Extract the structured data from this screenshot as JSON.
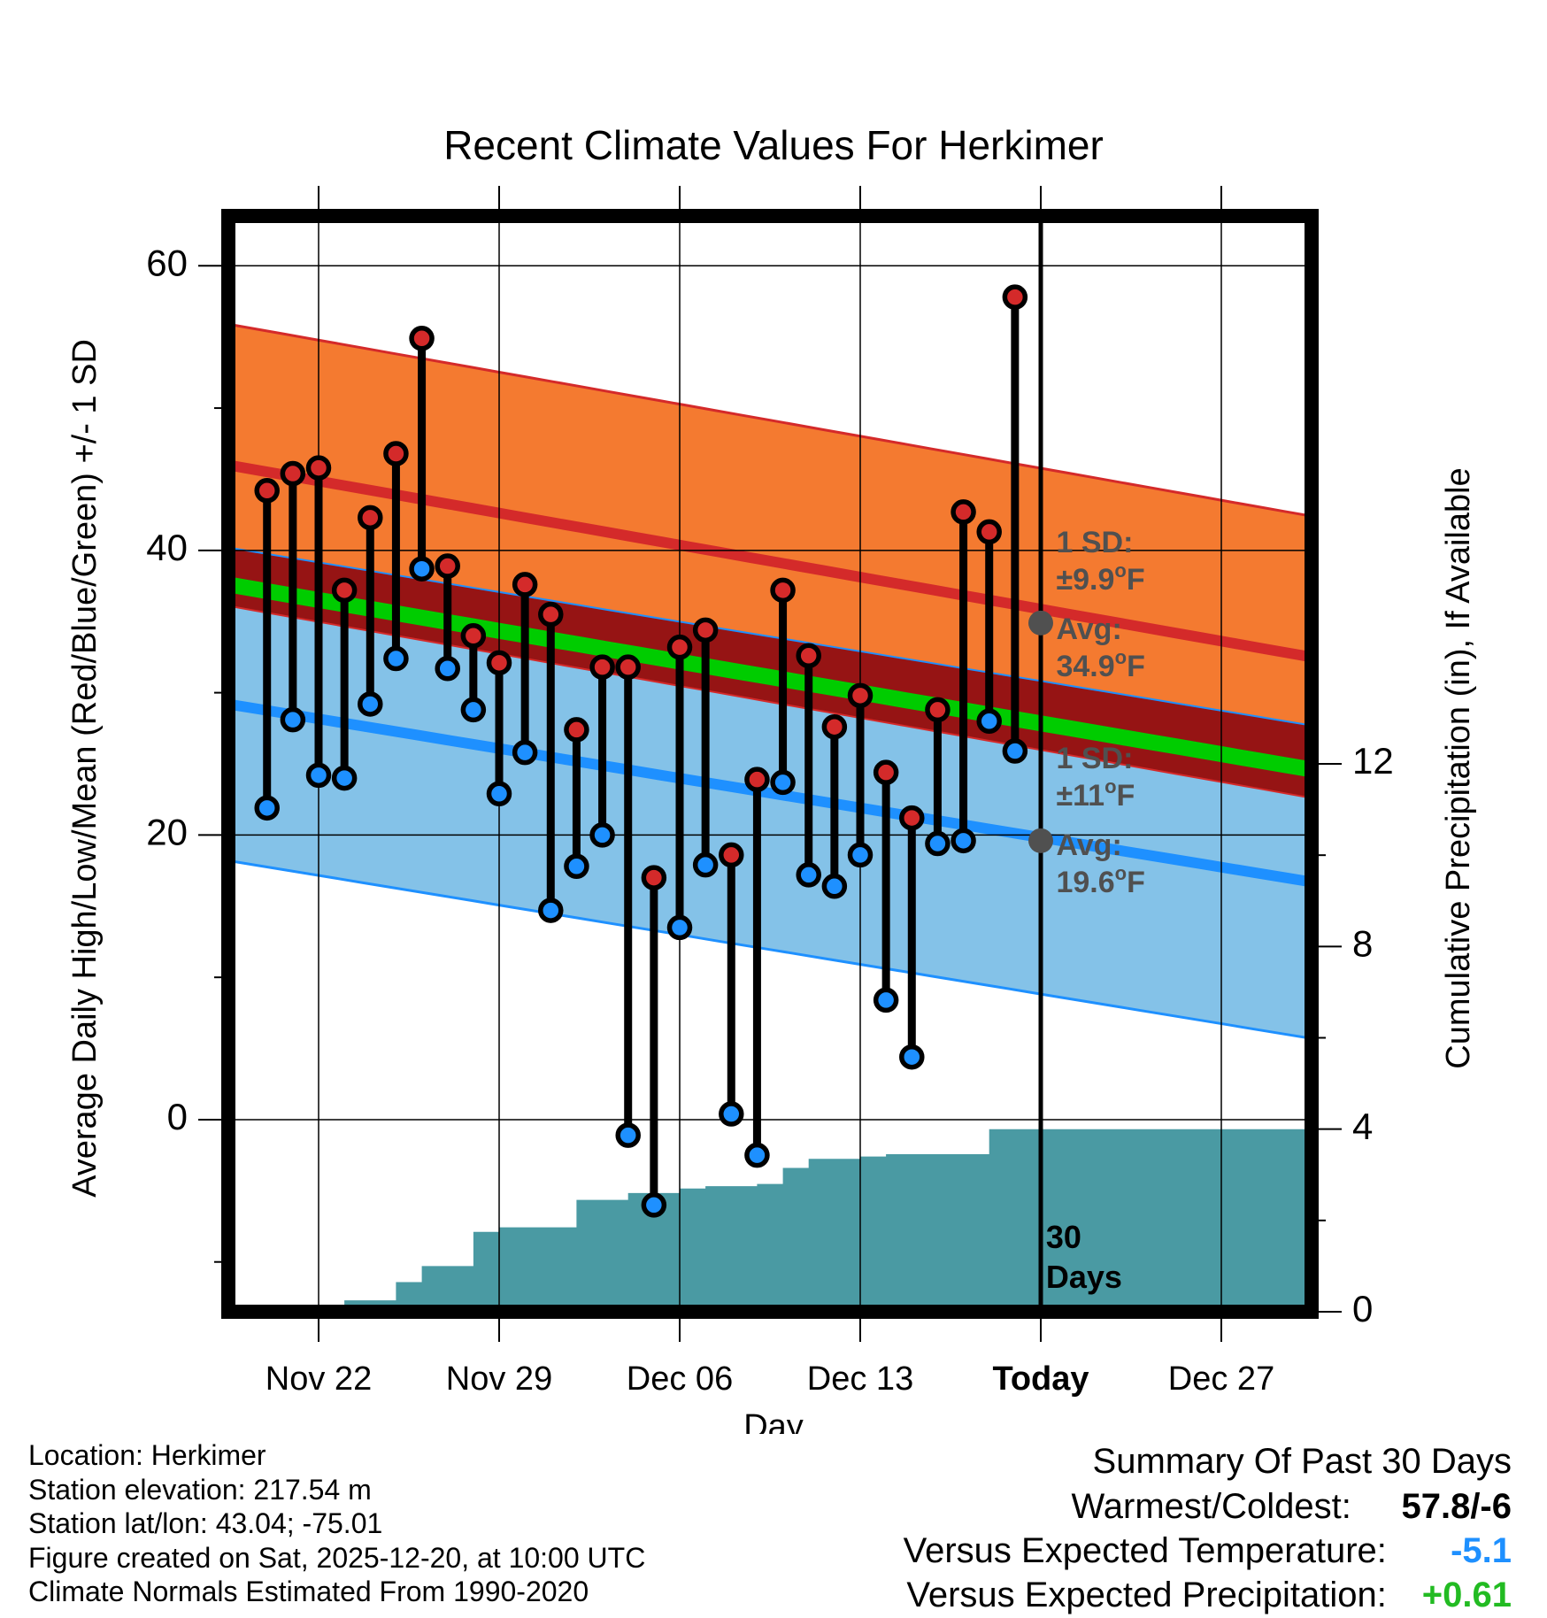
{
  "chart_data": {
    "type": "line",
    "title": "Recent Climate Values For Herkimer",
    "xlabel": "Day",
    "ylabel": "Average Daily High/Low/Mean (Red/Blue/Green) +/- 1 SD",
    "y2label": "Cumulative Precipitation (in), If Available",
    "ylim": [
      -13.5,
      63.5
    ],
    "y2lim": [
      0,
      24
    ],
    "xlim": [
      -3.5,
      38.5
    ],
    "yticks": [
      60,
      40,
      20,
      0
    ],
    "y2ticks": [
      12,
      8,
      4,
      0
    ],
    "xticks": [
      {
        "day": 0,
        "label": "Nov 22"
      },
      {
        "day": 7,
        "label": "Nov 29"
      },
      {
        "day": 14,
        "label": "Dec 06"
      },
      {
        "day": 21,
        "label": "Dec 13"
      },
      {
        "day": 28,
        "label": "Today"
      },
      {
        "day": 35,
        "label": "Dec 27"
      }
    ],
    "normal_high": {
      "avg_start": 46.0,
      "avg_end": 32.5,
      "sd": 9.9
    },
    "normal_low": {
      "avg_start": 29.2,
      "avg_end": 16.7,
      "sd": 11
    },
    "normal_mean": {
      "start": 37.6,
      "end": 24.6
    },
    "series": [
      {
        "name": "High",
        "color": "#d42a2a",
        "days": [
          -2,
          -1,
          0,
          1,
          2,
          3,
          4,
          5,
          6,
          7,
          8,
          9,
          10,
          11,
          12,
          13,
          14,
          15,
          16,
          17,
          18,
          19,
          20,
          21,
          22,
          23,
          24,
          25,
          26,
          27
        ],
        "values": [
          44.2,
          45.4,
          45.8,
          37.2,
          42.3,
          46.8,
          54.9,
          38.9,
          34.0,
          32.1,
          37.6,
          35.5,
          27.4,
          31.8,
          31.8,
          17.0,
          33.2,
          34.4,
          18.6,
          23.9,
          37.2,
          32.6,
          27.6,
          29.8,
          24.4,
          21.2,
          28.8,
          42.7,
          41.3,
          57.8
        ]
      },
      {
        "name": "Low",
        "color": "#1e90ff",
        "days": [
          -2,
          -1,
          0,
          1,
          2,
          3,
          4,
          5,
          6,
          7,
          8,
          9,
          10,
          11,
          12,
          13,
          14,
          15,
          16,
          17,
          18,
          19,
          20,
          21,
          22,
          23,
          24,
          25,
          26,
          27
        ],
        "values": [
          21.9,
          28.1,
          24.2,
          24.0,
          29.2,
          32.4,
          38.7,
          31.7,
          28.8,
          22.9,
          25.8,
          14.7,
          17.8,
          20.0,
          -1.1,
          -6.0,
          13.5,
          17.9,
          0.4,
          -2.5,
          23.7,
          17.2,
          16.4,
          18.6,
          8.4,
          4.4,
          19.4,
          19.6,
          28.0,
          25.9
        ]
      },
      {
        "name": "Cumulative Precipitation",
        "days": [
          0,
          1,
          2,
          3,
          4,
          5,
          6,
          7,
          8,
          9,
          10,
          11,
          12,
          13,
          14,
          15,
          16,
          17,
          18,
          19,
          20,
          21,
          22,
          23,
          24,
          25,
          26,
          27,
          28,
          38.5
        ],
        "values": [
          0.02,
          0.25,
          0.25,
          0.65,
          1.0,
          1.0,
          1.75,
          1.85,
          1.85,
          1.85,
          2.45,
          2.45,
          2.6,
          2.6,
          2.7,
          2.75,
          2.75,
          2.8,
          3.15,
          3.35,
          3.35,
          3.4,
          3.45,
          3.45,
          3.45,
          3.45,
          4.0,
          4.0,
          4.0,
          4.0
        ]
      }
    ],
    "today_marker": {
      "label1": "30",
      "label2": "Days"
    },
    "high_annotation": {
      "sd_label": "1 SD:",
      "sd_value": "±9.9",
      "avg_label": "Avg:",
      "avg_value": "34.9",
      "unit": "F",
      "deg": "o",
      "avg": 34.9
    },
    "low_annotation": {
      "sd_label": "1 SD:",
      "sd_value": "±11",
      "avg_label": "Avg:",
      "avg_value": "19.6",
      "unit": "F",
      "deg": "o",
      "avg": 19.6
    },
    "colors": {
      "high_band": "#f47a30",
      "high_line": "#d42a2a",
      "low_band": "#84c2e8",
      "low_line": "#1e90ff",
      "mean_line": "#00cc00",
      "overlap": "#961414",
      "precip": "#4a9aa3",
      "annotation": "#505050"
    }
  },
  "info": {
    "location": "Location: Herkimer",
    "elevation": "Station elevation: 217.54 m",
    "latlon": "Station lat/lon: 43.04; -75.01",
    "created": "Figure created on Sat, 2025-12-20, at 10:00 UTC",
    "normals": "Climate Normals Estimated From 1990-2020"
  },
  "summary": {
    "title": "Summary Of Past 30 Days",
    "warmest_label": "Warmest/Coldest:",
    "warmest_value": "57.8/-6",
    "temp_label": "Versus Expected Temperature:",
    "temp_value": "-5.1",
    "precip_label": "Versus Expected Precipitation:",
    "precip_value": "+0.61",
    "temp_color": "#1e90ff",
    "precip_color": "#22bb22"
  }
}
